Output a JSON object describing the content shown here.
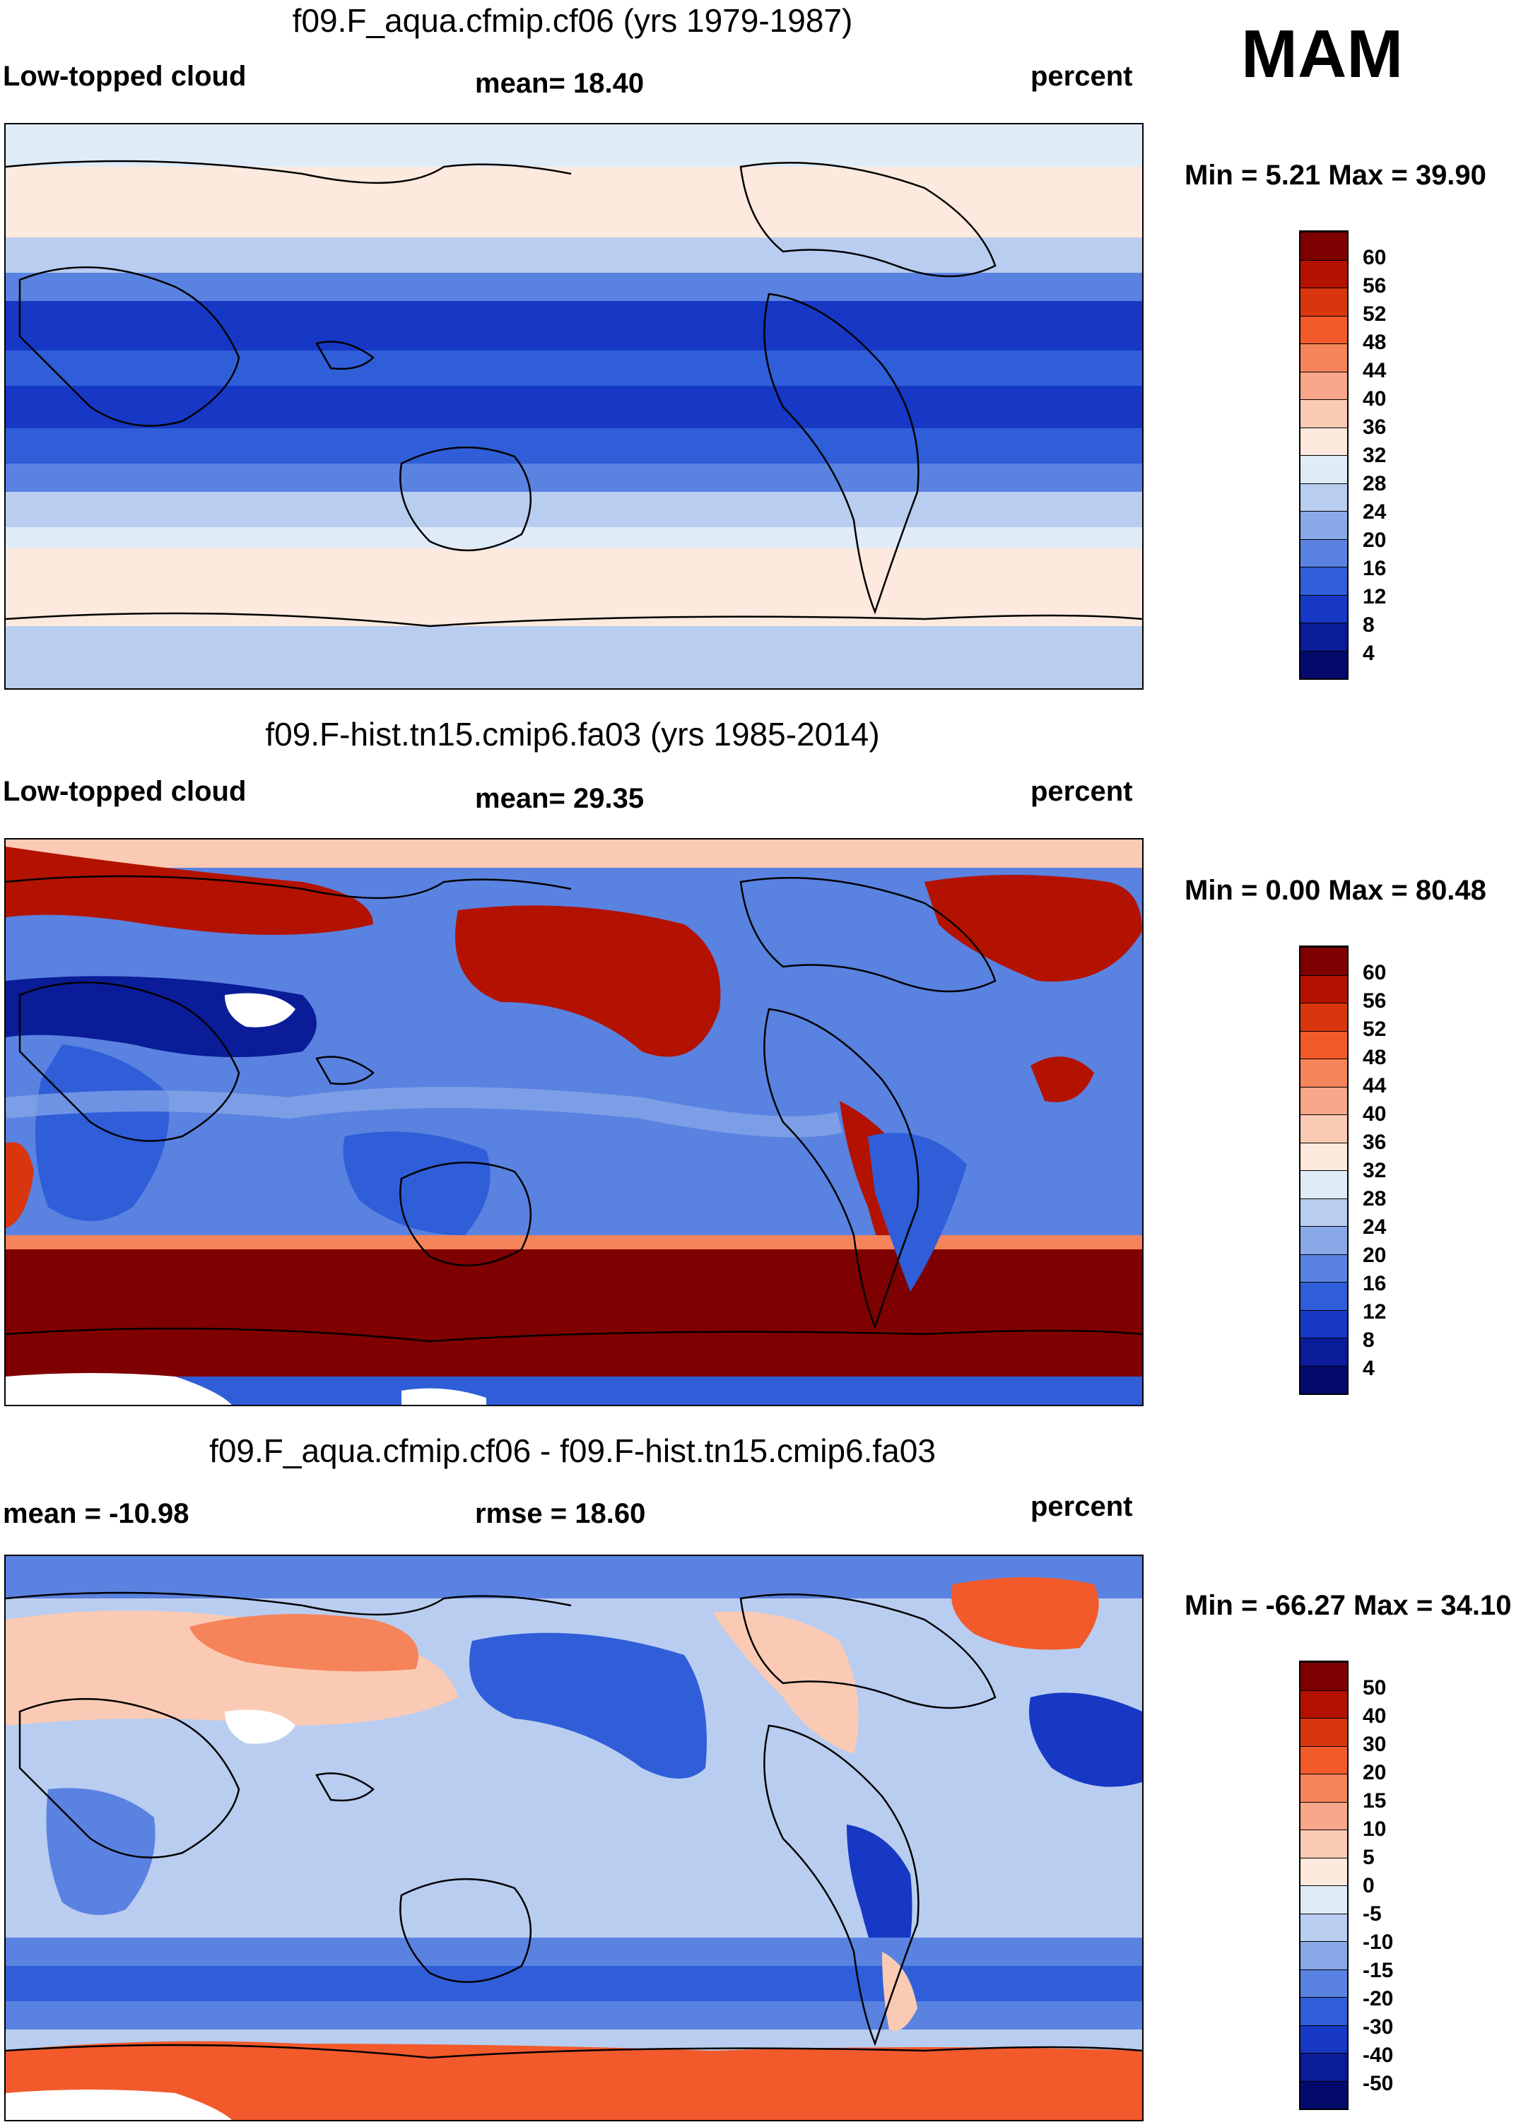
{
  "season": "MAM",
  "panels": [
    {
      "title": "f09.F_aqua.cfmip.cf06 (yrs 1979-1987)",
      "left_label": "Low-topped cloud",
      "center_label": "mean=  18.40",
      "units": "percent",
      "minmax": "Min =   5.21 Max =  39.90",
      "levels": [
        "60",
        "56",
        "52",
        "48",
        "44",
        "40",
        "36",
        "32",
        "28",
        "24",
        "20",
        "16",
        "12",
        "8",
        "4"
      ]
    },
    {
      "title": "f09.F-hist.tn15.cmip6.fa03 (yrs 1985-2014)",
      "left_label": "Low-topped cloud",
      "center_label": "mean=  29.35",
      "units": "percent",
      "minmax": "Min =   0.00 Max =  80.48",
      "levels": [
        "60",
        "56",
        "52",
        "48",
        "44",
        "40",
        "36",
        "32",
        "28",
        "24",
        "20",
        "16",
        "12",
        "8",
        "4"
      ]
    },
    {
      "title": "f09.F_aqua.cfmip.cf06 - f09.F-hist.tn15.cmip6.fa03",
      "left_label": "mean = -10.98",
      "center_label": "rmse =  18.60",
      "units": "percent",
      "minmax": "Min = -66.27 Max =  34.10",
      "levels": [
        "50",
        "40",
        "30",
        "20",
        "15",
        "10",
        "5",
        "0",
        "-5",
        "-10",
        "-15",
        "-20",
        "-30",
        "-40",
        "-50"
      ]
    }
  ],
  "colors": {
    "palette": [
      "#7f0000",
      "#b31200",
      "#d9360f",
      "#f25a2b",
      "#f6845a",
      "#f9a78a",
      "#fbcab4",
      "#fde9dd",
      "#e0ebf8",
      "#b9cdf0",
      "#8aa9e8",
      "#5a82e0",
      "#2f5ed8",
      "#1638c4",
      "#0a1c98",
      "#030a6a"
    ]
  }
}
